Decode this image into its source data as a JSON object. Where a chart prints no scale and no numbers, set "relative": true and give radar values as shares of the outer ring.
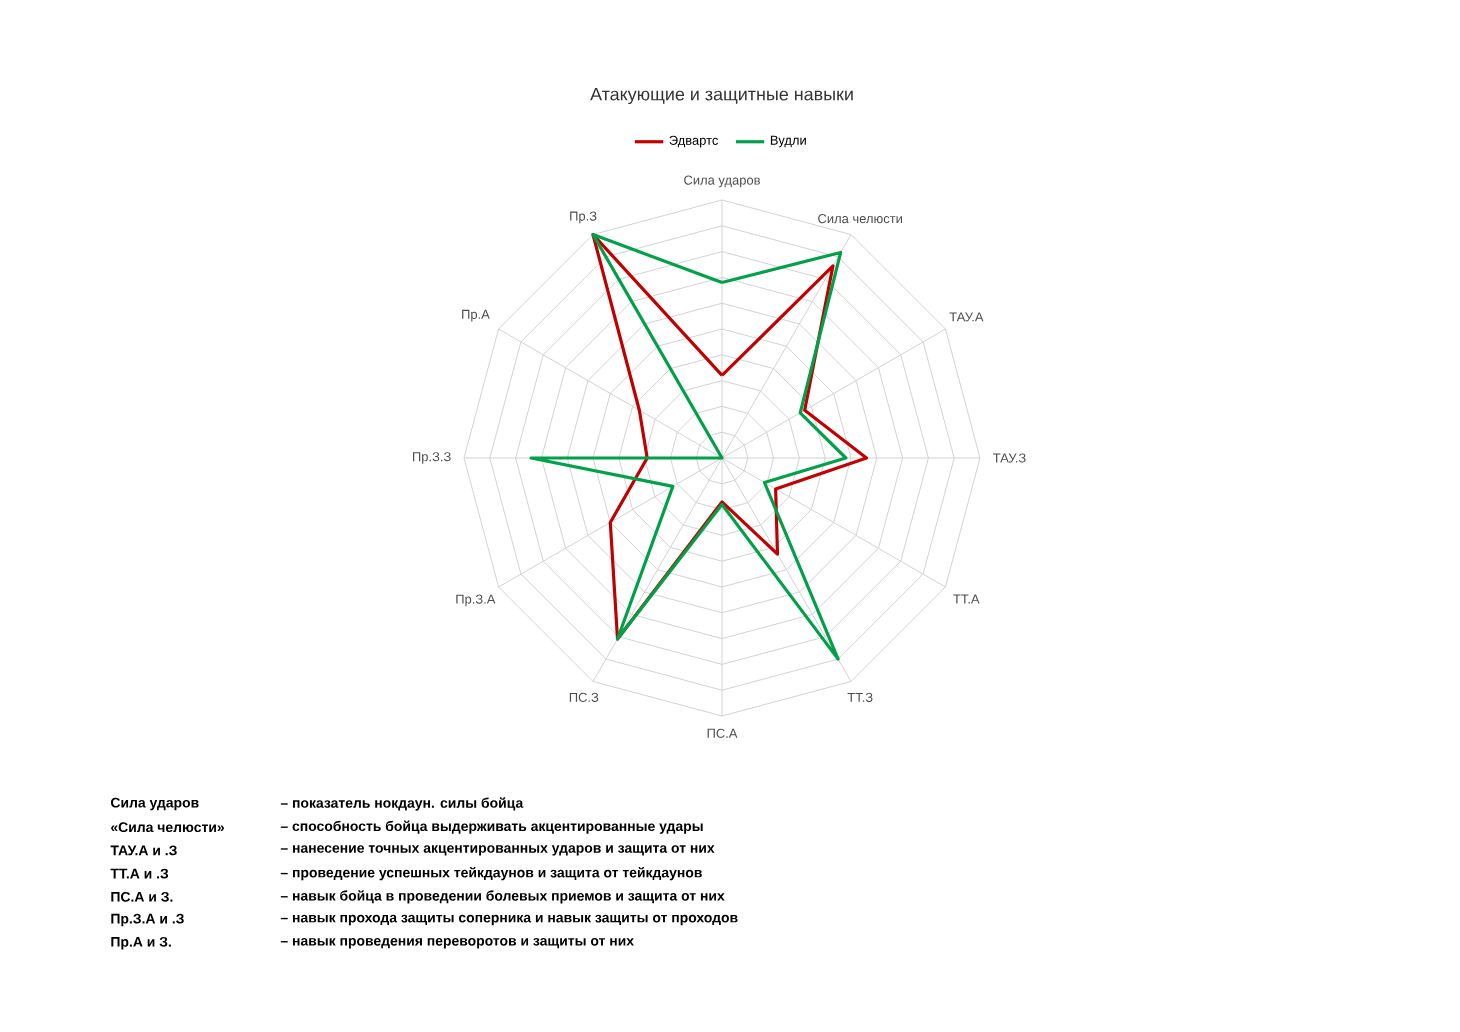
{
  "chart_data": {
    "type": "radar",
    "title": "Атакующие и защитные навыки",
    "relative": true,
    "grid": true,
    "legend": "top",
    "marker": "none",
    "line_style": "solid",
    "categories": [
      "Сила ударов",
      "Сила челюсти",
      "ТАУ.А",
      "ТАУ.З",
      "ТТ.А",
      "ТТ.З",
      "ПС.А",
      "ПС.З",
      "Пр.З.А",
      "Пр.З.З",
      "Пр.А",
      "Пр.З"
    ],
    "series": [
      {
        "name": "Эдвартс",
        "color": "#c00000",
        "values": [
          0.32,
          0.86,
          0.37,
          0.56,
          0.24,
          0.43,
          0.17,
          0.81,
          0.5,
          0.29,
          0.37,
          1
        ]
      },
      {
        "name": "Вудли",
        "color": "#00a04a",
        "values": [
          0.68,
          0.92,
          0.35,
          0.48,
          0.19,
          0.9,
          0.18,
          0.81,
          0.22,
          0.74,
          0,
          1
        ]
      }
    ],
    "annotations": [
      "Сила ударов",
      "– показатель нокдаун. силы бойца",
      "«Сила челюсти»",
      "– способность бойца выдерживать акцентированные удары",
      "ТАУ.А и .З",
      "– нанесение точных акцентированных ударов и защита от них",
      "ТТ.А и .З",
      "– проведение успешных тейкдаунов и защита от тейкдаунов",
      "ПС.А и З.",
      "– навык бойца в проведении болевых приемов и защита от них",
      "Пр.З.А и .З",
      "– навык прохода защиты соперника и навык защиты от проходов",
      "Пр.А и З.",
      "– навык проведения переворотов и защиты от них"
    ]
  }
}
